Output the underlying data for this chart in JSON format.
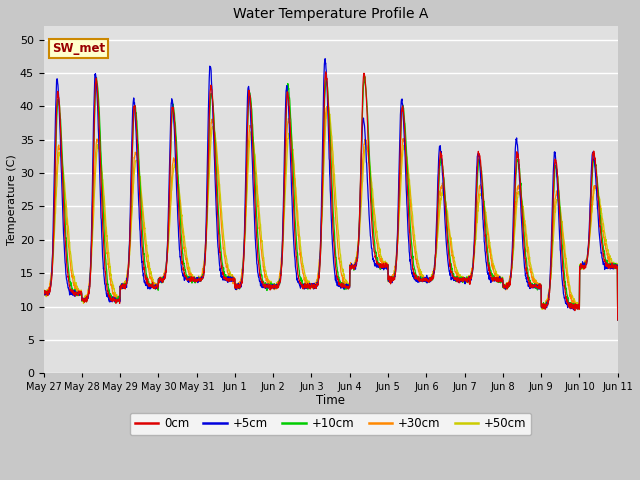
{
  "title": "Water Temperature Profile A",
  "xlabel": "Time",
  "ylabel": "Temperature (C)",
  "ylim": [
    0,
    52
  ],
  "yticks": [
    0,
    5,
    10,
    15,
    20,
    25,
    30,
    35,
    40,
    45,
    50
  ],
  "fig_bg": "#c8c8c8",
  "ax_bg": "#e0e0e0",
  "grid_color": "#ffffff",
  "colors": {
    "0cm": "#dd0000",
    "+5cm": "#0000dd",
    "+10cm": "#00cc00",
    "+30cm": "#ff8800",
    "+50cm": "#cccc00"
  },
  "x_tick_labels": [
    "May 27",
    "May 28",
    "May 29",
    "May 30",
    "May 31",
    "Jun 1",
    "Jun 2",
    "Jun 3",
    "Jun 4",
    "Jun 5",
    "Jun 6",
    "Jun 7",
    "Jun 8",
    "Jun 9",
    "Jun 10",
    "Jun 11"
  ],
  "n_days": 15,
  "ppd": 144,
  "sw_met_label": "SW_met",
  "sw_met_color": "#990000",
  "sw_met_bg": "#ffffcc",
  "sw_met_border": "#cc8800"
}
